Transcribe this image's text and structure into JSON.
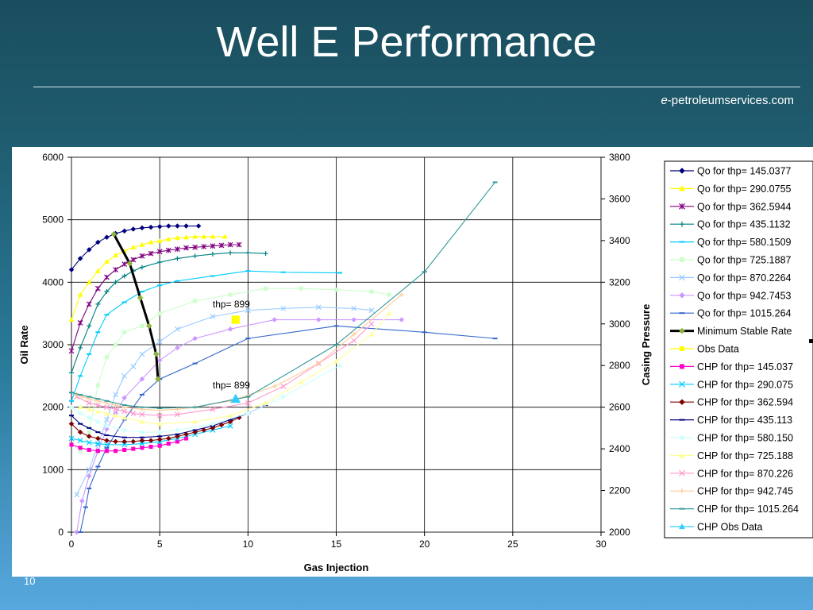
{
  "slide": {
    "title": "Well E Performance",
    "credit_prefix": "e",
    "credit_rest": "-petroleumservices.com",
    "slide_number": "10"
  },
  "chart_data": {
    "type": "line",
    "xlabel": "Gas Injection",
    "ylabel": "Oil Rate",
    "y2label": "Casing Pressure",
    "xlim": [
      0,
      30
    ],
    "ylim": [
      0,
      6000
    ],
    "y2lim": [
      2000,
      3800
    ],
    "xticks": [
      0,
      5,
      10,
      15,
      20,
      25,
      30
    ],
    "yticks": [
      0,
      1000,
      2000,
      3000,
      4000,
      5000,
      6000
    ],
    "y2ticks": [
      2000,
      2200,
      2400,
      2600,
      2800,
      3000,
      3200,
      3400,
      3600,
      3800
    ],
    "grid": true,
    "legend_position": "right",
    "annotations": [
      {
        "text": "thp= 899",
        "x": 8,
        "y": 3600
      },
      {
        "text": "thp= 899",
        "x": 8,
        "y": 2300
      }
    ],
    "series": [
      {
        "name": "Qo for thp= 145.0377",
        "axis": "left",
        "color": "#000080",
        "marker": "diamond",
        "x": [
          0,
          0.5,
          1,
          1.5,
          2,
          2.5,
          3,
          3.5,
          4,
          4.5,
          5,
          5.5,
          6,
          6.5,
          7.2
        ],
        "y": [
          4200,
          4380,
          4520,
          4640,
          4720,
          4780,
          4820,
          4850,
          4870,
          4880,
          4890,
          4900,
          4900,
          4900,
          4900
        ]
      },
      {
        "name": "Qo for thp= 290.0755",
        "axis": "left",
        "color": "#ffff00",
        "marker": "triangle",
        "x": [
          0,
          0.5,
          1,
          1.5,
          2,
          2.5,
          3,
          3.5,
          4,
          4.5,
          5,
          5.5,
          6,
          6.5,
          7,
          7.5,
          8,
          8.7
        ],
        "y": [
          3400,
          3800,
          4000,
          4180,
          4330,
          4430,
          4500,
          4560,
          4600,
          4640,
          4660,
          4690,
          4710,
          4720,
          4730,
          4730,
          4730,
          4730
        ]
      },
      {
        "name": "Qo for thp= 362.5944",
        "axis": "left",
        "color": "#800080",
        "marker": "star",
        "x": [
          0,
          0.5,
          1,
          1.5,
          2,
          2.5,
          3,
          3.5,
          4,
          4.5,
          5,
          5.5,
          6,
          6.5,
          7,
          7.5,
          8,
          8.5,
          9,
          9.5
        ],
        "y": [
          2900,
          3350,
          3650,
          3900,
          4080,
          4200,
          4290,
          4360,
          4420,
          4460,
          4490,
          4510,
          4530,
          4550,
          4560,
          4570,
          4580,
          4590,
          4600,
          4600
        ]
      },
      {
        "name": "Qo for thp= 435.1132",
        "axis": "left",
        "color": "#008080",
        "marker": "plus",
        "x": [
          0,
          0.5,
          1,
          1.5,
          2,
          2.5,
          3,
          3.5,
          4,
          5,
          6,
          7,
          8,
          9,
          10,
          11
        ],
        "y": [
          2550,
          2950,
          3300,
          3650,
          3850,
          4000,
          4100,
          4180,
          4240,
          4320,
          4380,
          4420,
          4450,
          4470,
          4470,
          4460
        ]
      },
      {
        "name": "Qo for thp= 580.1509",
        "axis": "left",
        "color": "#00ccff",
        "marker": "dash",
        "x": [
          0,
          0.5,
          1,
          1.5,
          2,
          3,
          4,
          5,
          6,
          8,
          10,
          12,
          15.2
        ],
        "y": [
          2100,
          2500,
          2850,
          3200,
          3480,
          3680,
          3850,
          3950,
          4020,
          4100,
          4180,
          4160,
          4150
        ]
      },
      {
        "name": "Qo for thp= 725.1887",
        "axis": "left",
        "color": "#ccffcc",
        "marker": "square",
        "x": [
          0.5,
          1,
          1.5,
          2,
          2.5,
          3,
          4,
          5,
          7,
          9,
          11,
          13,
          15,
          17,
          18
        ],
        "y": [
          1300,
          1600,
          2350,
          2800,
          3000,
          3200,
          3300,
          3500,
          3700,
          3800,
          3900,
          3900,
          3880,
          3850,
          3800
        ]
      },
      {
        "name": "Qo for thp= 870.2264",
        "axis": "left",
        "color": "#99ccff",
        "marker": "x",
        "x": [
          0.3,
          1,
          1.5,
          2,
          2.5,
          3,
          3.5,
          4,
          5,
          6,
          8,
          10,
          12,
          14,
          16,
          17
        ],
        "y": [
          600,
          1000,
          1400,
          1800,
          2200,
          2500,
          2650,
          2850,
          3050,
          3250,
          3450,
          3550,
          3580,
          3600,
          3580,
          3550
        ]
      },
      {
        "name": "Qo for thp= 942.7453",
        "axis": "left",
        "color": "#cc99ff",
        "marker": "diamond",
        "x": [
          0.3,
          0.6,
          1,
          1.5,
          2,
          2.5,
          3,
          4,
          5,
          6,
          7,
          9,
          11.5,
          14,
          16,
          18.7
        ],
        "y": [
          0,
          500,
          900,
          1300,
          1650,
          1900,
          2150,
          2450,
          2750,
          2950,
          3100,
          3250,
          3400,
          3400,
          3400,
          3400
        ]
      },
      {
        "name": "Qo for thp= 1015.264",
        "axis": "left",
        "color": "#3366cc",
        "marker": "dash",
        "x": [
          0.5,
          0.8,
          1,
          1.5,
          2,
          3,
          4,
          5,
          7,
          10,
          15,
          20,
          24
        ],
        "y": [
          0,
          400,
          700,
          1050,
          1350,
          1800,
          2200,
          2450,
          2700,
          3100,
          3300,
          3200,
          3100
        ]
      },
      {
        "name": "Minimum Stable Rate",
        "axis": "left",
        "color": "#000000",
        "marker": "diamond",
        "x": [
          2.4,
          3.3,
          3.9,
          4.4,
          4.8,
          4.9
        ],
        "y": [
          4770,
          4300,
          3750,
          3300,
          2850,
          2450
        ]
      },
      {
        "name": "Obs Data",
        "axis": "left",
        "color": "#ffff00",
        "marker": "square",
        "x": [
          9.3
        ],
        "y": [
          3400
        ]
      },
      {
        "name": "CHP for thp= 145.037",
        "axis": "right",
        "color": "#ff00cc",
        "marker": "square",
        "x": [
          0,
          0.5,
          1,
          1.5,
          2,
          2.5,
          3,
          3.5,
          4,
          4.5,
          5,
          5.5,
          6,
          6.5
        ],
        "y": [
          2420,
          2405,
          2395,
          2390,
          2390,
          2390,
          2395,
          2400,
          2405,
          2410,
          2415,
          2425,
          2435,
          2450
        ]
      },
      {
        "name": "CHP for thp= 290.075",
        "axis": "right",
        "color": "#00ccff",
        "marker": "x",
        "x": [
          0,
          0.5,
          1,
          1.5,
          2,
          3,
          4,
          5,
          6,
          7,
          8,
          9
        ],
        "y": [
          2450,
          2440,
          2430,
          2425,
          2420,
          2420,
          2425,
          2435,
          2450,
          2470,
          2490,
          2510
        ]
      },
      {
        "name": "CHP for thp= 362.594",
        "axis": "right",
        "color": "#800000",
        "marker": "diamond",
        "x": [
          0,
          0.5,
          1,
          1.5,
          2,
          2.5,
          3,
          3.5,
          4,
          4.5,
          5,
          5.5,
          6,
          6.5,
          7,
          7.5,
          8,
          8.5,
          9,
          9.5
        ],
        "y": [
          2520,
          2480,
          2460,
          2450,
          2440,
          2435,
          2435,
          2435,
          2440,
          2440,
          2445,
          2450,
          2460,
          2470,
          2480,
          2490,
          2500,
          2515,
          2530,
          2550
        ]
      },
      {
        "name": "CHP for thp= 435.113",
        "axis": "right",
        "color": "#000080",
        "marker": "dash",
        "x": [
          0,
          0.5,
          1,
          1.5,
          2,
          3,
          4,
          5,
          6,
          7,
          8,
          9,
          10,
          11
        ],
        "y": [
          2560,
          2520,
          2500,
          2480,
          2465,
          2455,
          2455,
          2460,
          2470,
          2490,
          2510,
          2540,
          2570,
          2610
        ]
      },
      {
        "name": "CHP for thp= 580.150",
        "axis": "right",
        "color": "#ccffff",
        "marker": "diamond",
        "x": [
          0,
          0.5,
          1,
          1.5,
          2,
          3,
          4,
          5,
          6,
          8,
          10,
          12,
          15.2
        ],
        "y": [
          2600,
          2570,
          2550,
          2530,
          2510,
          2490,
          2480,
          2480,
          2490,
          2520,
          2570,
          2650,
          2800
        ]
      },
      {
        "name": "CHP for thp= 725.188",
        "axis": "right",
        "color": "#ffff99",
        "marker": "triangle",
        "x": [
          0.5,
          1,
          1.5,
          2,
          2.5,
          3,
          4,
          5,
          7,
          9,
          11,
          13,
          15,
          17,
          18
        ],
        "y": [
          2600,
          2590,
          2580,
          2570,
          2560,
          2550,
          2530,
          2520,
          2530,
          2560,
          2620,
          2720,
          2820,
          2950,
          3050
        ]
      },
      {
        "name": "CHP for thp= 870.226",
        "axis": "right",
        "color": "#ff99cc",
        "marker": "x",
        "x": [
          0.3,
          1,
          1.5,
          2,
          2.5,
          3,
          3.5,
          4,
          5,
          6,
          8,
          10,
          12,
          14,
          16,
          17
        ],
        "y": [
          2650,
          2620,
          2610,
          2600,
          2590,
          2580,
          2570,
          2565,
          2560,
          2565,
          2590,
          2620,
          2700,
          2810,
          2920,
          3000
        ]
      },
      {
        "name": "CHP for thp= 942.745",
        "axis": "right",
        "color": "#ffcc99",
        "marker": "plus",
        "x": [
          0.3,
          0.6,
          1,
          1.5,
          2,
          2.5,
          3,
          4,
          5,
          6,
          7,
          9,
          11.5,
          14,
          16,
          18.7
        ],
        "y": [
          2660,
          2650,
          2640,
          2630,
          2620,
          2610,
          2600,
          2590,
          2585,
          2590,
          2600,
          2630,
          2700,
          2810,
          2950,
          3140
        ]
      },
      {
        "name": "CHP for thp= 1015.264",
        "axis": "right",
        "color": "#339999",
        "marker": "dash",
        "x": [
          0,
          0.5,
          1,
          1.5,
          2,
          3,
          4,
          5,
          7,
          10,
          15,
          20,
          24
        ],
        "y": [
          2670,
          2660,
          2650,
          2640,
          2630,
          2610,
          2600,
          2595,
          2600,
          2650,
          2900,
          3250,
          3680
        ]
      },
      {
        "name": "CHP Obs Data",
        "axis": "right",
        "color": "#33ccff",
        "marker": "triangle",
        "x": [
          9.3
        ],
        "y": [
          2640
        ]
      }
    ]
  }
}
